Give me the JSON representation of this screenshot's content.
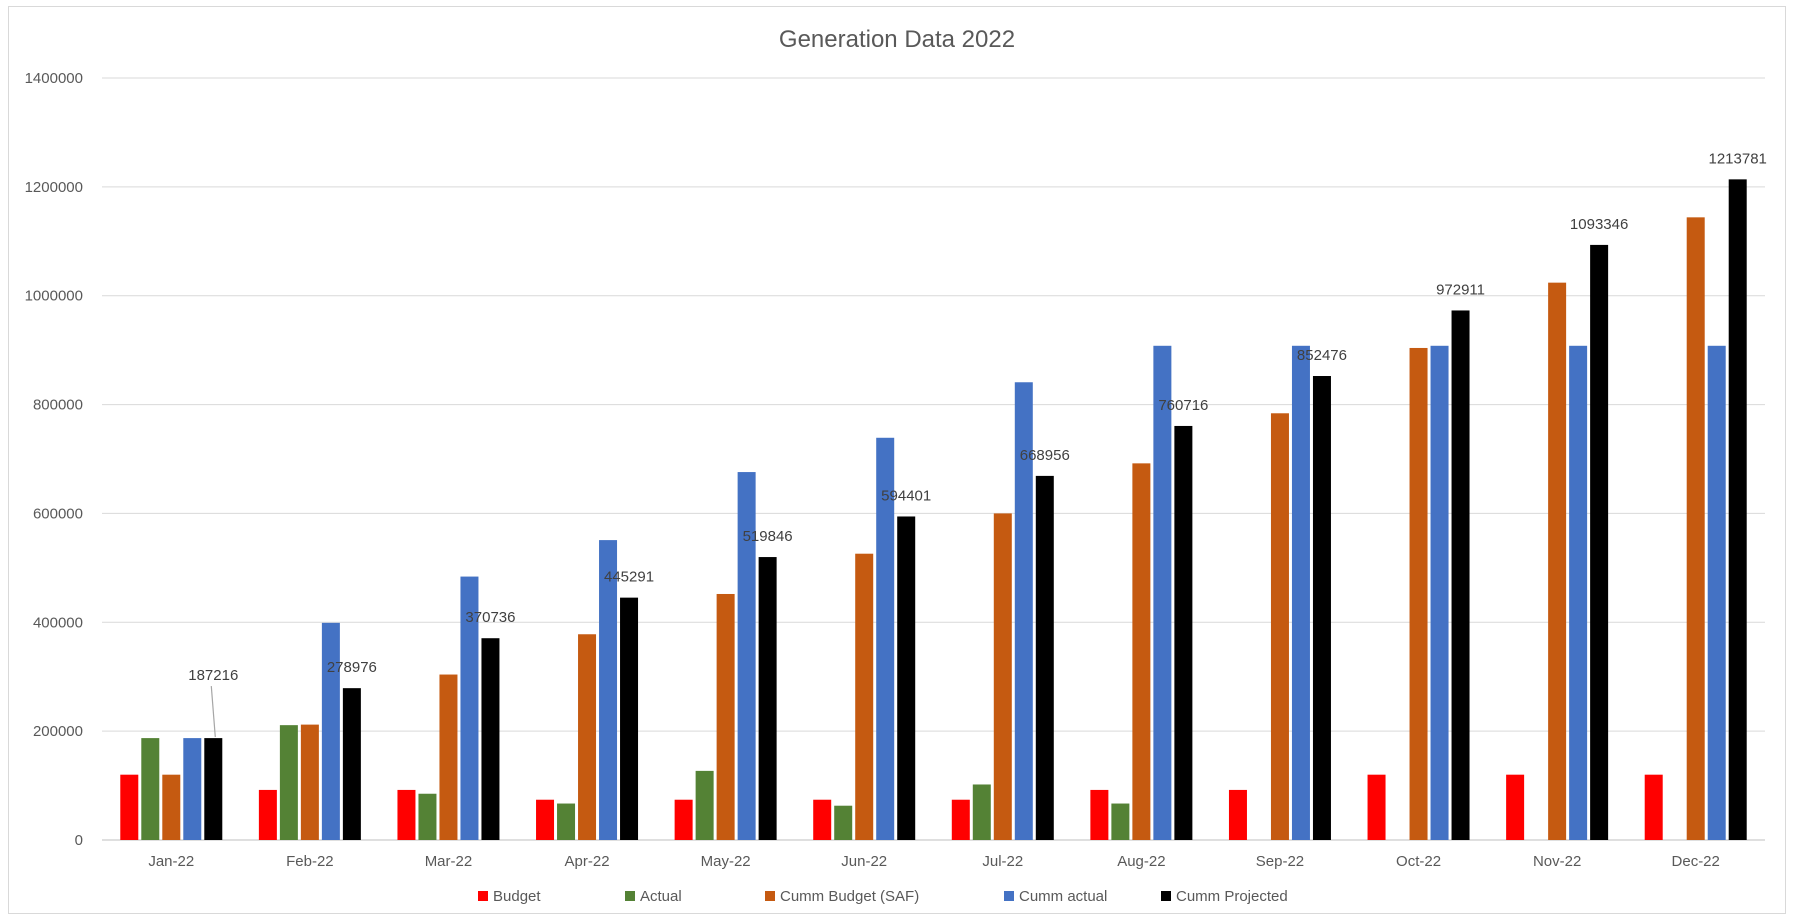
{
  "chart_data": {
    "type": "bar",
    "title": "Generation Data 2022",
    "xlabel": "",
    "ylabel": "",
    "ylim": [
      0,
      1400000
    ],
    "yticks": [
      0,
      200000,
      400000,
      600000,
      800000,
      1000000,
      1200000,
      1400000
    ],
    "yticklabels": [
      "0",
      "200000",
      "400000",
      "600000",
      "800000",
      "1000000",
      "1200000",
      "1400000"
    ],
    "grid": true,
    "legend_position": "bottom",
    "categories": [
      "Jan-22",
      "Feb-22",
      "Mar-22",
      "Apr-22",
      "May-22",
      "Jun-22",
      "Jul-22",
      "Aug-22",
      "Sep-22",
      "Oct-22",
      "Nov-22",
      "Dec-22"
    ],
    "series": [
      {
        "name": "Budget",
        "color": "#ff0000",
        "values": [
          120000,
          92000,
          92000,
          74000,
          74000,
          74000,
          74000,
          92000,
          92000,
          120000,
          120000,
          120000
        ]
      },
      {
        "name": "Actual",
        "color": "#548235",
        "values": [
          187216,
          211000,
          85000,
          67000,
          127000,
          63000,
          102000,
          67000,
          null,
          null,
          null,
          null
        ]
      },
      {
        "name": "Cumm  Budget (SAF)",
        "color": "#c55a11",
        "values": [
          120000,
          212000,
          304000,
          378000,
          452000,
          526000,
          600000,
          692000,
          784000,
          904000,
          1024000,
          1144000
        ]
      },
      {
        "name": "Cumm actual",
        "color": "#4472c4",
        "values": [
          187216,
          399000,
          484000,
          551000,
          676000,
          739000,
          841000,
          908000,
          908000,
          908000,
          908000,
          908000
        ]
      },
      {
        "name": "Cumm Projected",
        "color": "#000000",
        "values": [
          187216,
          278976,
          370736,
          445291,
          519846,
          594401,
          668956,
          760716,
          852476,
          972911,
          1093346,
          1213781
        ],
        "data_labels": [
          "187216",
          "278976",
          "370736",
          "445291",
          "519846",
          "594401",
          "668956",
          "760716",
          "852476",
          "972911",
          "1093346",
          "1213781"
        ]
      }
    ]
  }
}
